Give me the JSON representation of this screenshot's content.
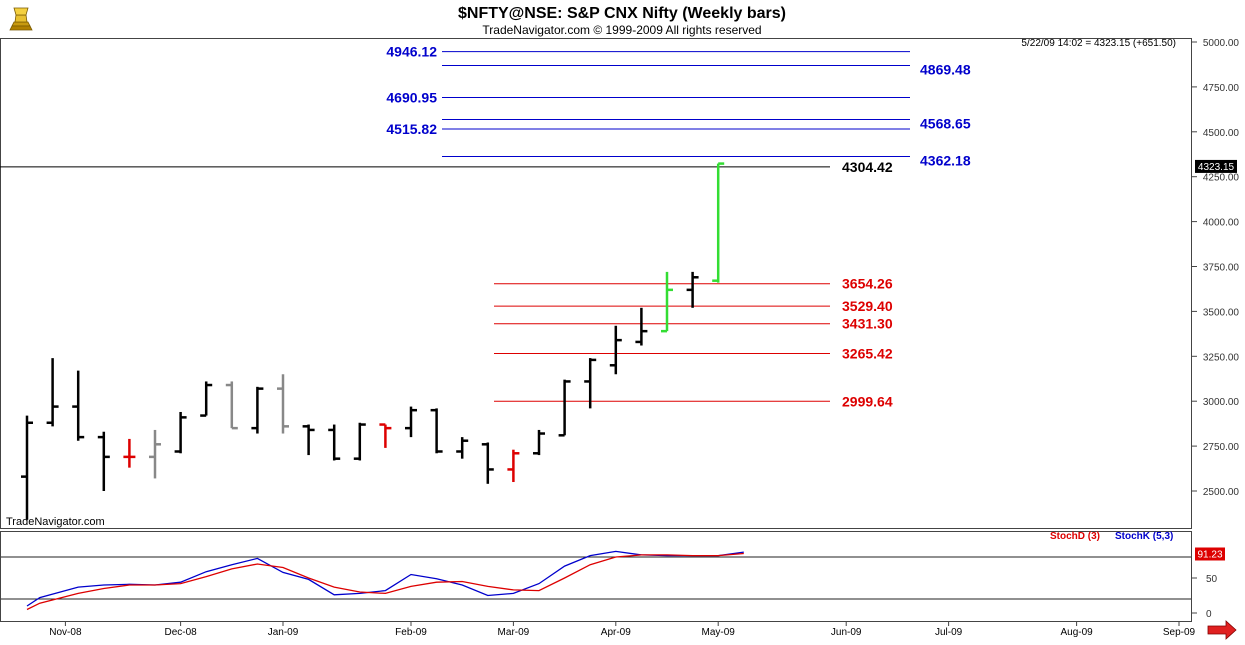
{
  "header": {
    "title": "$NFTY@NSE:  S&P CNX Nifty  (Weekly bars)",
    "subtitle": "TradeNavigator.com © 1999-2009 All rights reserved",
    "status": "5/22/09 14:02 = 4323.15 (+651.50)",
    "watermark": "TradeNavigator.com",
    "logo_icon": "gold-trophy-icon",
    "scroll_icon": "red-right-arrow-icon"
  },
  "chart_data": [
    {
      "type": "ohlc",
      "title": "$NFTY@NSE:  S&P CNX Nifty  (Weekly bars)",
      "ylim": [
        2340,
        5050
      ],
      "y_ticks": [
        "2500.00",
        "2750.00",
        "3000.00",
        "3250.00",
        "3500.00",
        "3750.00",
        "4000.00",
        "4250.00",
        "4500.00",
        "4750.00",
        "5000.00"
      ],
      "x_labels": [
        {
          "label": "Nov-08",
          "w": 1.5
        },
        {
          "label": "Dec-08",
          "w": 6
        },
        {
          "label": "Jan-09",
          "w": 10
        },
        {
          "label": "Feb-09",
          "w": 15
        },
        {
          "label": "Mar-09",
          "w": 19
        },
        {
          "label": "Apr-09",
          "w": 23
        },
        {
          "label": "May-09",
          "w": 27
        },
        {
          "label": "Jun-09",
          "w": 32
        },
        {
          "label": "Jul-09",
          "w": 36
        },
        {
          "label": "Aug-09",
          "w": 41
        },
        {
          "label": "Sep-09",
          "w": 45
        }
      ],
      "last_price_label": "4323.15",
      "colors": {
        "up": "#000000",
        "down_red": "#dd0000",
        "grey": "#888888",
        "gain": "#33dd33",
        "blue_level": "#0000cc",
        "red_level": "#dd0000"
      },
      "bars": [
        {
          "o": 2580,
          "h": 2920,
          "l": 2340,
          "c": 2880,
          "color": "#000000"
        },
        {
          "o": 2880,
          "h": 3240,
          "l": 2860,
          "c": 2970,
          "color": "#000000"
        },
        {
          "o": 2970,
          "h": 3170,
          "l": 2780,
          "c": 2800,
          "color": "#000000"
        },
        {
          "o": 2800,
          "h": 2830,
          "l": 2500,
          "c": 2690,
          "color": "#000000"
        },
        {
          "o": 2690,
          "h": 2790,
          "l": 2630,
          "c": 2690,
          "color": "#dd0000"
        },
        {
          "o": 2690,
          "h": 2840,
          "l": 2570,
          "c": 2760,
          "color": "#888888"
        },
        {
          "o": 2720,
          "h": 2940,
          "l": 2710,
          "c": 2910,
          "color": "#000000"
        },
        {
          "o": 2920,
          "h": 3110,
          "l": 2920,
          "c": 3090,
          "color": "#000000"
        },
        {
          "o": 3090,
          "h": 3110,
          "l": 2850,
          "c": 2850,
          "color": "#888888"
        },
        {
          "o": 2850,
          "h": 3080,
          "l": 2820,
          "c": 3070,
          "color": "#000000"
        },
        {
          "o": 3070,
          "h": 3150,
          "l": 2820,
          "c": 2860,
          "color": "#888888"
        },
        {
          "o": 2860,
          "h": 2870,
          "l": 2700,
          "c": 2840,
          "color": "#000000"
        },
        {
          "o": 2840,
          "h": 2870,
          "l": 2670,
          "c": 2680,
          "color": "#000000"
        },
        {
          "o": 2680,
          "h": 2880,
          "l": 2670,
          "c": 2870,
          "color": "#000000"
        },
        {
          "o": 2870,
          "h": 2870,
          "l": 2740,
          "c": 2850,
          "color": "#dd0000"
        },
        {
          "o": 2850,
          "h": 2970,
          "l": 2800,
          "c": 2950,
          "color": "#000000"
        },
        {
          "o": 2950,
          "h": 2960,
          "l": 2710,
          "c": 2720,
          "color": "#000000"
        },
        {
          "o": 2720,
          "h": 2800,
          "l": 2680,
          "c": 2780,
          "color": "#000000"
        },
        {
          "o": 2760,
          "h": 2770,
          "l": 2540,
          "c": 2620,
          "color": "#000000"
        },
        {
          "o": 2620,
          "h": 2730,
          "l": 2550,
          "c": 2710,
          "color": "#dd0000"
        },
        {
          "o": 2710,
          "h": 2840,
          "l": 2700,
          "c": 2820,
          "color": "#000000"
        },
        {
          "o": 2810,
          "h": 3120,
          "l": 2810,
          "c": 3110,
          "color": "#000000"
        },
        {
          "o": 3110,
          "h": 3240,
          "l": 2960,
          "c": 3230,
          "color": "#000000"
        },
        {
          "o": 3200,
          "h": 3420,
          "l": 3150,
          "c": 3340,
          "color": "#000000"
        },
        {
          "o": 3330,
          "h": 3520,
          "l": 3310,
          "c": 3390,
          "color": "#000000"
        },
        {
          "o": 3390,
          "h": 3720,
          "l": 3390,
          "c": 3620,
          "color": "#33dd33"
        },
        {
          "o": 3620,
          "h": 3720,
          "l": 3520,
          "c": 3690,
          "color": "#000000"
        },
        {
          "o": 3671,
          "h": 4323,
          "l": 3660,
          "c": 4323,
          "color": "#33dd33"
        }
      ],
      "levels": [
        {
          "value": "4946.12",
          "y": 4946.12,
          "side": "left",
          "color": "#0000cc"
        },
        {
          "value": "4869.48",
          "y": 4869.48,
          "side": "right",
          "color": "#0000cc"
        },
        {
          "value": "4690.95",
          "y": 4690.95,
          "side": "left",
          "color": "#0000cc"
        },
        {
          "value": "4568.65",
          "y": 4568.65,
          "side": "right",
          "color": "#0000cc"
        },
        {
          "value": "4515.82",
          "y": 4515.82,
          "side": "left",
          "color": "#0000cc"
        },
        {
          "value": "4362.18",
          "y": 4362.18,
          "side": "right",
          "color": "#0000cc"
        },
        {
          "value": "4304.42",
          "y": 4304.42,
          "side": "right",
          "color": "#000000"
        },
        {
          "value": "3654.26",
          "y": 3654.26,
          "side": "right",
          "color": "#dd0000"
        },
        {
          "value": "3529.40",
          "y": 3529.4,
          "side": "right",
          "color": "#dd0000"
        },
        {
          "value": "3431.30",
          "y": 3431.3,
          "side": "right",
          "color": "#dd0000"
        },
        {
          "value": "3265.42",
          "y": 3265.42,
          "side": "right",
          "color": "#dd0000"
        },
        {
          "value": "2999.64",
          "y": 2999.64,
          "side": "right",
          "color": "#dd0000"
        }
      ]
    },
    {
      "type": "line",
      "ylim": [
        -15,
        115
      ],
      "y_ticks": [
        "0",
        "50"
      ],
      "reference_levels": [
        80,
        20
      ],
      "legend": [
        "StochD (3)",
        "StochK (5,3)"
      ],
      "value_label": "91.23",
      "x": [
        0,
        0.5,
        2,
        3,
        4,
        5,
        6,
        7,
        8,
        9,
        10,
        11,
        12,
        13,
        14,
        15,
        16,
        17,
        18,
        19,
        20,
        21,
        22,
        23,
        24,
        25,
        26,
        27,
        28
      ],
      "series": [
        {
          "name": "StochK (5,3)",
          "color": "#0000cc",
          "values": [
            10,
            22,
            37,
            40,
            41,
            40,
            44,
            59,
            69,
            78,
            58,
            48,
            26,
            28,
            32,
            55,
            49,
            40,
            25,
            28,
            42,
            67,
            82,
            88,
            83,
            82,
            82,
            82,
            87
          ]
        },
        {
          "name": "StochD (3)",
          "color": "#dd0000",
          "values": [
            5,
            14,
            28,
            35,
            40,
            40,
            42,
            52,
            63,
            70,
            65,
            50,
            37,
            30,
            28,
            38,
            44,
            45,
            38,
            33,
            32,
            50,
            69,
            80,
            83,
            83,
            82,
            82,
            85
          ]
        }
      ]
    }
  ]
}
